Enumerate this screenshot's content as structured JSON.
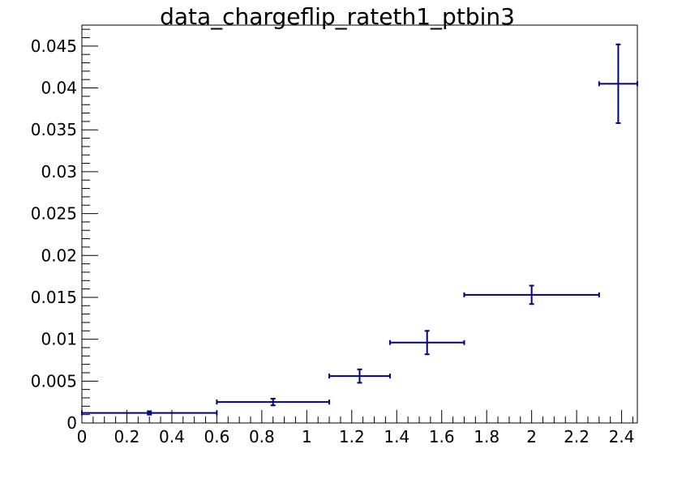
{
  "chart_data": {
    "type": "scatter",
    "title": "data_chargeflip_rateth1_ptbin3",
    "xlabel": "",
    "ylabel": "",
    "xlim": [
      0,
      2.47
    ],
    "ylim": [
      0,
      0.0475
    ],
    "x_ticks": [
      "0",
      "0.2",
      "0.4",
      "0.6",
      "0.8",
      "1",
      "1.2",
      "1.4",
      "1.6",
      "1.8",
      "2",
      "2.2",
      "2.4"
    ],
    "y_ticks": [
      "0",
      "0.005",
      "0.01",
      "0.015",
      "0.02",
      "0.025",
      "0.03",
      "0.035",
      "0.04",
      "0.045"
    ],
    "grid": false,
    "legend": "none",
    "marker_color": "#000080",
    "series": [
      {
        "points": [
          {
            "x": 0.3,
            "xlow": 0.0,
            "xhigh": 0.6,
            "y": 0.0012,
            "ylow": 0.001,
            "yhigh": 0.0014
          },
          {
            "x": 0.85,
            "xlow": 0.6,
            "xhigh": 1.1,
            "y": 0.0025,
            "ylow": 0.0021,
            "yhigh": 0.0029
          },
          {
            "x": 1.235,
            "xlow": 1.1,
            "xhigh": 1.37,
            "y": 0.0056,
            "ylow": 0.0048,
            "yhigh": 0.0064
          },
          {
            "x": 1.535,
            "xlow": 1.37,
            "xhigh": 1.7,
            "y": 0.0096,
            "ylow": 0.0082,
            "yhigh": 0.011
          },
          {
            "x": 2.0,
            "xlow": 1.7,
            "xhigh": 2.3,
            "y": 0.0153,
            "ylow": 0.0142,
            "yhigh": 0.0164
          },
          {
            "x": 2.385,
            "xlow": 2.3,
            "xhigh": 2.47,
            "y": 0.0405,
            "ylow": 0.0358,
            "yhigh": 0.0452
          }
        ]
      }
    ]
  }
}
